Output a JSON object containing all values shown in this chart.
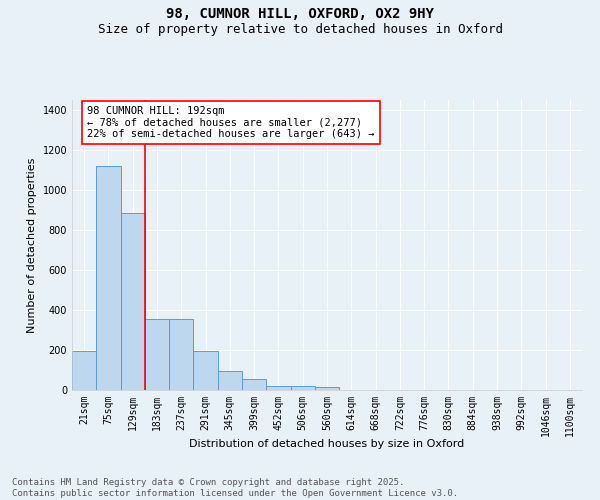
{
  "title_line1": "98, CUMNOR HILL, OXFORD, OX2 9HY",
  "title_line2": "Size of property relative to detached houses in Oxford",
  "xlabel": "Distribution of detached houses by size in Oxford",
  "ylabel": "Number of detached properties",
  "categories": [
    "21sqm",
    "75sqm",
    "129sqm",
    "183sqm",
    "237sqm",
    "291sqm",
    "345sqm",
    "399sqm",
    "452sqm",
    "506sqm",
    "560sqm",
    "614sqm",
    "668sqm",
    "722sqm",
    "776sqm",
    "830sqm",
    "884sqm",
    "938sqm",
    "992sqm",
    "1046sqm",
    "1100sqm"
  ],
  "values": [
    195,
    1120,
    885,
    355,
    355,
    195,
    93,
    57,
    22,
    20,
    15,
    0,
    0,
    0,
    0,
    0,
    0,
    0,
    0,
    0,
    0
  ],
  "bar_color": "#bdd7ee",
  "bar_edge_color": "#5b9bd5",
  "background_color": "#e8f0f8",
  "grid_color": "#ffffff",
  "vline_color": "red",
  "vline_pos": 2.5,
  "annotation_text": "98 CUMNOR HILL: 192sqm\n← 78% of detached houses are smaller (2,277)\n22% of semi-detached houses are larger (643) →",
  "annotation_box_color": "white",
  "annotation_box_edgecolor": "red",
  "ylim": [
    0,
    1450
  ],
  "yticks": [
    0,
    200,
    400,
    600,
    800,
    1000,
    1200,
    1400
  ],
  "footer_line1": "Contains HM Land Registry data © Crown copyright and database right 2025.",
  "footer_line2": "Contains public sector information licensed under the Open Government Licence v3.0.",
  "title_fontsize": 10,
  "subtitle_fontsize": 9,
  "axis_label_fontsize": 8,
  "tick_fontsize": 7,
  "annotation_fontsize": 7.5,
  "footer_fontsize": 6.5
}
